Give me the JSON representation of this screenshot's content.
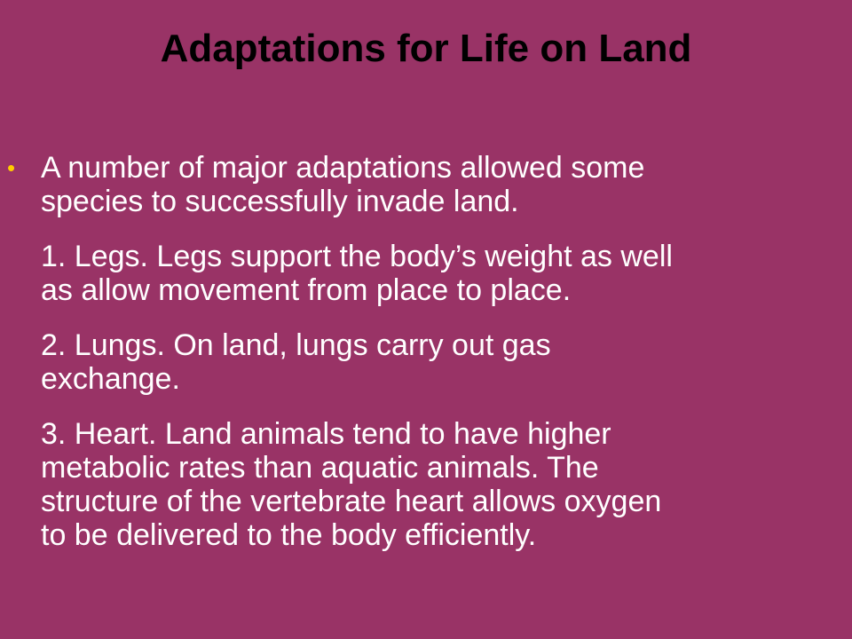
{
  "slide": {
    "title": "Adaptations for Life on Land",
    "bullet_color": "#ffcc00",
    "background_color": "#993366",
    "paragraphs": [
      {
        "bullet": "•",
        "lines": [
          "A number of major adaptations allowed some",
          "species to successfully invade land."
        ]
      },
      {
        "lines": [
          "1. Legs. Legs support the body’s weight as well",
          "as allow movement from place to place."
        ]
      },
      {
        "lines": [
          "2. Lungs. On land, lungs carry out gas",
          "exchange."
        ]
      },
      {
        "lines": [
          "3. Heart. Land animals tend to have higher",
          "metabolic rates than aquatic animals. The",
          "structure of the vertebrate heart allows oxygen",
          "to be delivered to  the body efficiently."
        ]
      }
    ]
  }
}
